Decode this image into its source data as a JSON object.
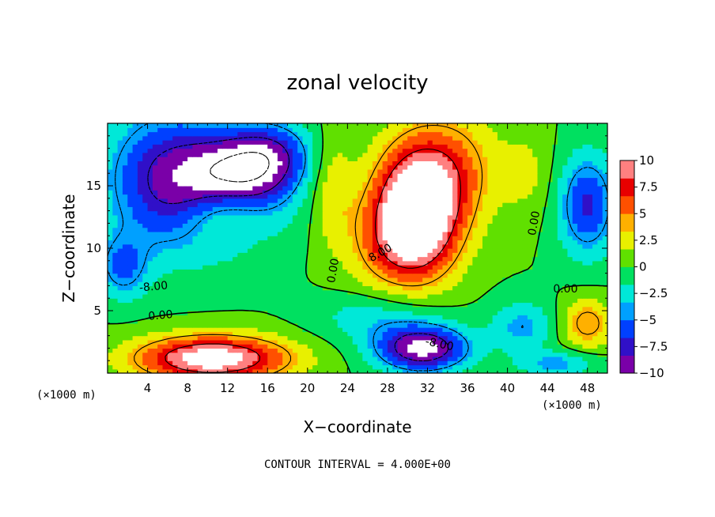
{
  "chart_data": {
    "type": "heatmap",
    "title": "zonal velocity",
    "xlabel": "X−coordinate",
    "ylabel": "Z−coordinate",
    "x_unit_left": "(×1000 m)",
    "x_unit_right": "(×1000 m)",
    "footer": "CONTOUR INTERVAL = 4.000E+00",
    "xlim": [
      0,
      50
    ],
    "ylim": [
      0,
      20
    ],
    "x_ticks": [
      "4",
      "8",
      "12",
      "16",
      "20",
      "24",
      "28",
      "32",
      "36",
      "40",
      "44",
      "48"
    ],
    "y_ticks": [
      "5",
      "10",
      "15"
    ],
    "colorbar_ticks": [
      "10",
      "7.5",
      "5",
      "2.5",
      "0",
      "−2.5",
      "−5",
      "−7.5",
      "−10"
    ],
    "colorbar_range": [
      -10,
      10
    ],
    "colorbar_colors": [
      "#7a00a8",
      "#3010c8",
      "#0040ff",
      "#00a0ff",
      "#00e8d8",
      "#00e060",
      "#60e000",
      "#e8f000",
      "#ffb000",
      "#ff5000",
      "#e80000",
      "#ff8080"
    ],
    "contour_labels": [
      {
        "text": "-8.00",
        "x": 4.6,
        "y": 6.9,
        "angle": -5
      },
      {
        "text": "0.00",
        "x": 5.3,
        "y": 4.6,
        "angle": -5
      },
      {
        "text": "0.00",
        "x": 22.6,
        "y": 8.2,
        "angle": -80
      },
      {
        "text": "8.00",
        "x": 27.3,
        "y": 9.6,
        "angle": -30
      },
      {
        "text": "0.00",
        "x": 42.7,
        "y": 12.0,
        "angle": -80
      },
      {
        "text": "0.00",
        "x": 45.8,
        "y": 6.7,
        "angle": 0
      },
      {
        "text": "-8.00",
        "x": 33.2,
        "y": 2.3,
        "angle": 12
      }
    ],
    "features": [
      {
        "value": 10.5,
        "x": 12.3,
        "y": 13.0,
        "sx": 4.5,
        "sy": 2.7
      },
      {
        "value": -14,
        "x": 13.0,
        "y": 14.5,
        "sx": 5.0,
        "sy": 4.0
      },
      {
        "value": -8.5,
        "x": 6.0,
        "y": 15.5,
        "sx": 6.0,
        "sy": 5.5
      },
      {
        "value": -6.0,
        "x": 16.5,
        "y": 17.5,
        "sx": 4.0,
        "sy": 2.5
      },
      {
        "value": 13.0,
        "x": 31.0,
        "y": 13.5,
        "sx": 4.2,
        "sy": 5.0
      },
      {
        "value": 5.0,
        "x": 29.0,
        "y": 10.5,
        "sx": 5.0,
        "sy": 4.0
      },
      {
        "value": 4.0,
        "x": 35.0,
        "y": 16.5,
        "sx": 4.5,
        "sy": 4.5
      },
      {
        "value": 3.0,
        "x": 22.5,
        "y": 15.0,
        "sx": 2.0,
        "sy": 4.5
      },
      {
        "value": 12.0,
        "x": 10.5,
        "y": 1.2,
        "sx": 7.5,
        "sy": 1.8
      },
      {
        "value": -11.0,
        "x": 31.5,
        "y": 2.0,
        "sx": 4.5,
        "sy": 1.8
      },
      {
        "value": -3.0,
        "x": 27.0,
        "y": 4.5,
        "sx": 6.0,
        "sy": 2.0
      },
      {
        "value": -7.0,
        "x": 48.0,
        "y": 13.5,
        "sx": 2.8,
        "sy": 4.0
      },
      {
        "value": 5.0,
        "x": 48.0,
        "y": 4.0,
        "sx": 2.5,
        "sy": 2.0
      },
      {
        "value": -4.0,
        "x": 41.5,
        "y": 3.8,
        "sx": 3.0,
        "sy": 2.0
      },
      {
        "value": -5.0,
        "x": 1.5,
        "y": 8.5,
        "sx": 2.5,
        "sy": 2.5
      },
      {
        "value": 2.0,
        "x": 42.0,
        "y": 16.0,
        "sx": 2.5,
        "sy": 3.5
      },
      {
        "value": -4.0,
        "x": 45.0,
        "y": 0.8,
        "sx": 4.0,
        "sy": 1.0
      }
    ]
  }
}
